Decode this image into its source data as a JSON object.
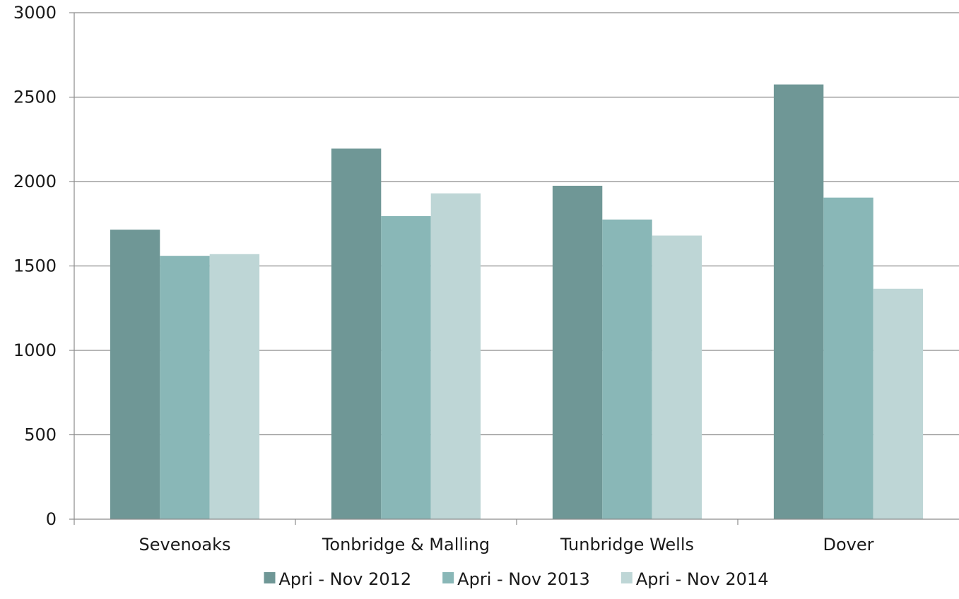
{
  "chart_data": {
    "type": "bar",
    "title": "",
    "xlabel": "",
    "ylabel": "",
    "categories": [
      "Sevenoaks",
      "Tonbridge & Malling",
      "Tunbridge Wells",
      "Dover"
    ],
    "series": [
      {
        "name": "Apri - Nov 2012",
        "color": "#6f9796",
        "values": [
          1715,
          2195,
          1975,
          2575
        ]
      },
      {
        "name": "Apri - Nov 2013",
        "color": "#89b7b7",
        "values": [
          1560,
          1795,
          1775,
          1905
        ]
      },
      {
        "name": "Apri - Nov 2014",
        "color": "#bed6d6",
        "values": [
          1570,
          1930,
          1680,
          1365
        ]
      }
    ],
    "ylim": [
      0,
      3000
    ],
    "yticks": [
      0,
      500,
      1000,
      1500,
      2000,
      2500,
      3000
    ],
    "grid": true,
    "legend_position": "bottom"
  }
}
